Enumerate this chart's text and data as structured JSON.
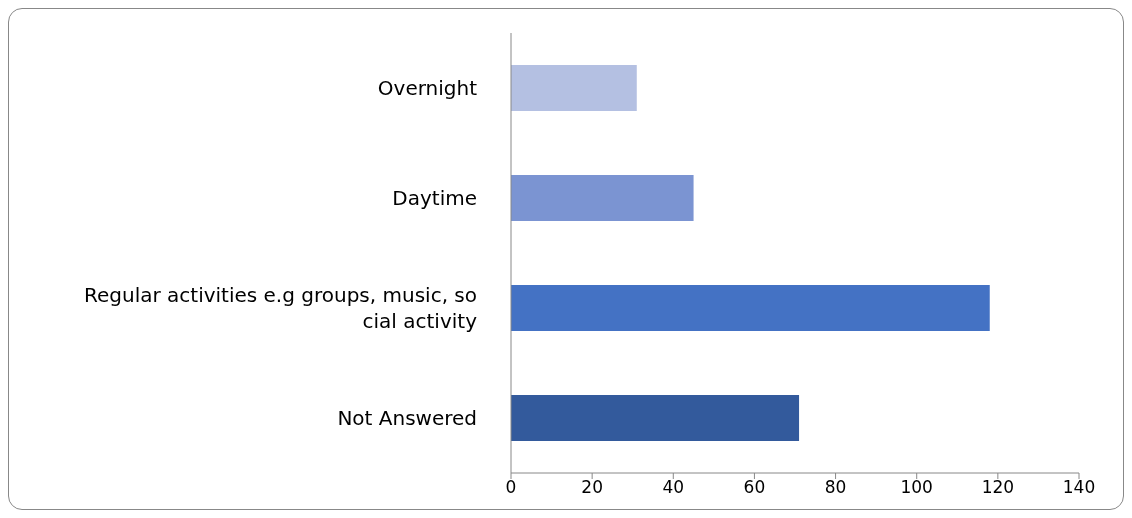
{
  "chart_data": {
    "type": "bar",
    "orientation": "horizontal",
    "categories": [
      "Overnight",
      "Daytime",
      "Regular activities e.g groups, music, social activity",
      "Not Answered"
    ],
    "values": [
      31,
      45,
      118,
      71
    ],
    "colors": [
      "#b4c0e2",
      "#7b94d2",
      "#4472c4",
      "#335a9c"
    ],
    "xlim": [
      0,
      140
    ],
    "xticks": [
      0,
      20,
      40,
      60,
      80,
      100,
      120,
      140
    ],
    "grid": false,
    "legend": false
  }
}
